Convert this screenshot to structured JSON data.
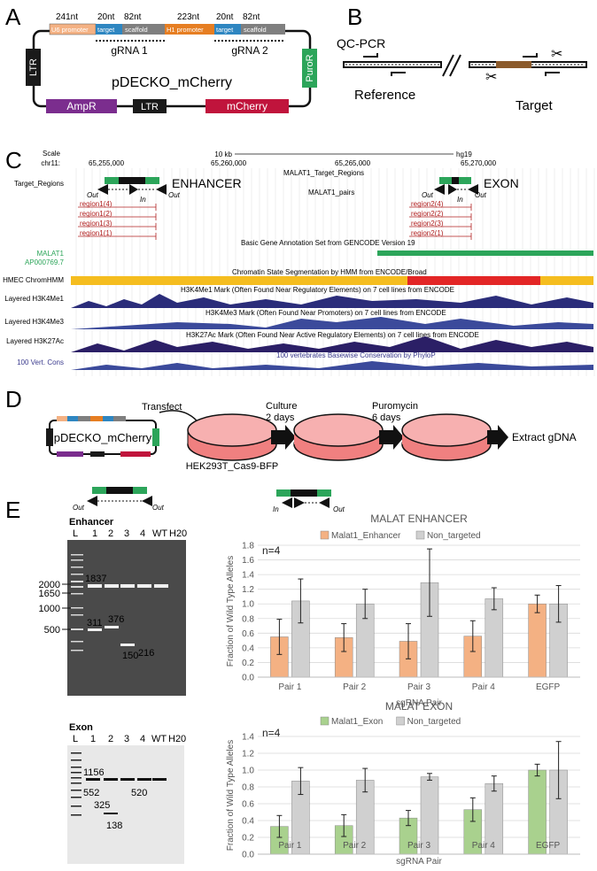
{
  "panels": {
    "a": "A",
    "b": "B",
    "c": "C",
    "d": "D",
    "e": "E"
  },
  "panelA": {
    "lengths": [
      "241nt",
      "20nt",
      "82nt",
      "223nt",
      "20nt",
      "82nt"
    ],
    "segments": [
      "U6 promoter",
      "target",
      "scaffold",
      "H1 promoter",
      "target",
      "scaffold"
    ],
    "grna1": "gRNA 1",
    "grna2": "gRNA 2",
    "ltr_left": "LTR",
    "puror": "PuroR",
    "plasmid": "pDECKO_mCherry",
    "ampr": "AmpR",
    "ltr_bottom": "LTR",
    "mcherry": "mCherry"
  },
  "panelB": {
    "qcpcr": "QC-PCR",
    "reference": "Reference",
    "target": "Target"
  },
  "panelC": {
    "scale_label": "Scale",
    "scale_value": "10 kb",
    "assembly": "hg19",
    "chr": "chr11:",
    "coords": [
      "65,255,000",
      "65,260,000",
      "65,265,000",
      "65,270,000"
    ],
    "target_regions": "Target_Regions",
    "track_name": "MALAT1_Target_Regions",
    "pairs": "MALAT1_pairs",
    "enhancer": "ENHANCER",
    "exon": "EXON",
    "out": "Out",
    "in": "In",
    "regions1": [
      "region1(4)",
      "region1(2)",
      "region1(3)",
      "region1(1)"
    ],
    "regions2": [
      "region2(4)",
      "region2(2)",
      "region2(3)",
      "region2(1)"
    ],
    "gencode": "Basic Gene Annotation Set from GENCODE Version 19",
    "malat1": "MALAT1",
    "ap": "AP000769.7",
    "chromhmm_title": "Chromatin State Segmentation by HMM from ENCODE/Broad",
    "hmec": "HMEC ChromHMM",
    "h3k4me1_label": "Layered H3K4Me1",
    "h3k4me1_title": "H3K4Me1 Mark (Often Found Near Regulatory Elements) on 7 cell lines from ENCODE",
    "h3k4me3_label": "Layered H3K4Me3",
    "h3k4me3_title": "H3K4Me3 Mark (Often Found Near Promoters) on 7 cell lines from ENCODE",
    "h3k27ac_label": "Layered H3K27Ac",
    "h3k27ac_title": "H3K27Ac Mark (Often Found Near Active Regulatory Elements) on 7 cell lines from ENCODE",
    "cons_label": "100 Vert. Cons",
    "cons_title": "100 vertebrates Basewise Conservation by PhyloP"
  },
  "panelD": {
    "plasmid": "pDECKO_mCherry",
    "transfect": "Transfect",
    "cells": "HEK293T_Cas9-BFP",
    "culture": "Culture",
    "culture_days": "2 days",
    "puro": "Puromycin",
    "puro_days": "6 days",
    "extract": "Extract gDNA"
  },
  "panelE": {
    "enh_gel": {
      "title": "Enhancer",
      "lanes": [
        "L",
        "1",
        "2",
        "3",
        "4",
        "WT",
        "H20"
      ],
      "markers": [
        "2000",
        "1650",
        "1000",
        "500"
      ],
      "bands": [
        "1837",
        "311",
        "376",
        "150",
        "216"
      ]
    },
    "exon_gel": {
      "title": "Exon",
      "lanes": [
        "L",
        "1",
        "2",
        "3",
        "4",
        "WT",
        "H20"
      ],
      "bands": [
        "1156",
        "552",
        "325",
        "520",
        "138"
      ]
    },
    "out": "Out",
    "in": "In"
  },
  "chart_data": [
    {
      "type": "bar",
      "title": "MALAT ENHANCER",
      "annotation": "n=4",
      "xlabel": "sgRNA Pair",
      "ylabel": "Fraction of Wild Type Alleles",
      "ylim": [
        0,
        1.8
      ],
      "yticks": [
        "0.0",
        "0.2",
        "0.4",
        "0.6",
        "0.8",
        "1.0",
        "1.2",
        "1.4",
        "1.6",
        "1.8"
      ],
      "categories": [
        "Pair 1",
        "Pair 2",
        "Pair 3",
        "Pair 4",
        "EGFP"
      ],
      "legend_position": "top",
      "series": [
        {
          "name": "Malat1_Enhancer",
          "color": "#f4b183",
          "values": [
            0.55,
            0.54,
            0.49,
            0.56,
            1.0
          ],
          "errors": [
            0.24,
            0.19,
            0.24,
            0.21,
            0.12
          ]
        },
        {
          "name": "Non_targeted",
          "color": "#d0d0d0",
          "values": [
            1.04,
            1.0,
            1.29,
            1.07,
            1.0
          ],
          "errors": [
            0.3,
            0.2,
            0.46,
            0.15,
            0.25
          ]
        }
      ]
    },
    {
      "type": "bar",
      "title": "MALAT EXON",
      "annotation": "n=4",
      "xlabel": "sgRNA Pair",
      "ylabel": "Fraction of Wild Type Alleles",
      "ylim": [
        0,
        1.4
      ],
      "yticks": [
        "0.0",
        "0.2",
        "0.4",
        "0.6",
        "0.8",
        "1.0",
        "1.2",
        "1.4"
      ],
      "categories": [
        "Pair 1",
        "Pair 2",
        "Pair 3",
        "Pair 4",
        "EGFP"
      ],
      "legend_position": "top",
      "series": [
        {
          "name": "Malat1_Exon",
          "color": "#a9d18e",
          "values": [
            0.33,
            0.34,
            0.43,
            0.53,
            1.0
          ],
          "errors": [
            0.13,
            0.13,
            0.09,
            0.14,
            0.07
          ]
        },
        {
          "name": "Non_targeted",
          "color": "#d0d0d0",
          "values": [
            0.87,
            0.88,
            0.92,
            0.84,
            1.0
          ],
          "errors": [
            0.16,
            0.14,
            0.04,
            0.09,
            0.34
          ]
        }
      ]
    }
  ]
}
